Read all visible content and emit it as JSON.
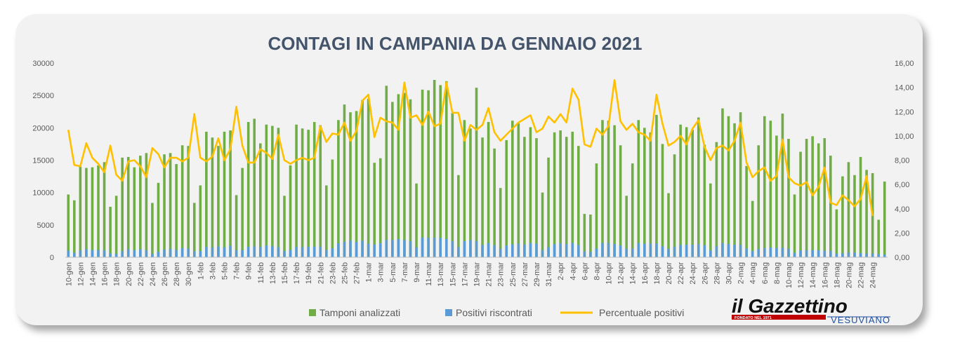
{
  "chart_data": {
    "type": "bar+line",
    "title": "CONTAGI IN CAMPANIA DA GENNAIO 2021",
    "left_axis": {
      "min": 0,
      "max": 30000,
      "step": 5000,
      "tick_labels": [
        "0",
        "5000",
        "10000",
        "15000",
        "20000",
        "25000",
        "30000"
      ]
    },
    "right_axis": {
      "min": 0,
      "max": 16,
      "step": 2,
      "tick_labels": [
        "0,00",
        "2,00",
        "4,00",
        "6,00",
        "8,00",
        "10,00",
        "12,00",
        "14,00",
        "16,00"
      ]
    },
    "x_labels": [
      "10-gen",
      "12-gen",
      "14-gen",
      "16-gen",
      "18-gen",
      "20-gen",
      "22-gen",
      "24-gen",
      "26-gen",
      "28-gen",
      "30-gen",
      "1-feb",
      "3-feb",
      "5-feb",
      "7-feb",
      "9-feb",
      "11-feb",
      "13-feb",
      "15-feb",
      "17-feb",
      "19-feb",
      "21-feb",
      "23-feb",
      "25-feb",
      "27-feb",
      "1-mar",
      "3-mar",
      "5-mar",
      "7-mar",
      "9-mar",
      "11-mar",
      "13-mar",
      "15-mar",
      "17-mar",
      "19-mar",
      "21-mar",
      "23-mar",
      "25-mar",
      "27-mar",
      "29-mar",
      "31-mar",
      "2-apr",
      "4-apr",
      "6-apr",
      "8-apr",
      "10-apr",
      "12-apr",
      "14-apr",
      "16-apr",
      "18-apr",
      "20-apr",
      "22-apr",
      "24-apr",
      "26-apr",
      "28-apr",
      "30-apr",
      "2-mag",
      "4-mag",
      "6-mag",
      "8-mag",
      "10-mag",
      "12-mag",
      "14-mag",
      "16-mag",
      "18-mag",
      "20-mag",
      "22-mag",
      "24-mag"
    ],
    "series": [
      {
        "name": "Tamponi analizzati",
        "axis": "left",
        "kind": "bar",
        "values": [
          9700,
          8800,
          14000,
          13800,
          13900,
          14200,
          14700,
          7800,
          9500,
          15400,
          15500,
          13900,
          15700,
          16100,
          8400,
          11500,
          15900,
          16100,
          14400,
          17300,
          17200,
          8400,
          11100,
          19400,
          18500,
          17200,
          19400,
          19600,
          9600,
          13800,
          20900,
          21400,
          17600,
          20500,
          20300,
          20000,
          9500,
          14200,
          20500,
          19900,
          19700,
          20900,
          20400,
          11100,
          15100,
          21200,
          23600,
          22400,
          22600,
          24300,
          24500,
          14600,
          15300,
          26500,
          24000,
          25200,
          25400,
          24400,
          11400,
          25900,
          25800,
          27400,
          26600,
          27200,
          22300,
          12700,
          21200,
          19900,
          26200,
          18500,
          20900,
          16800,
          10700,
          18100,
          21100,
          20700,
          18600,
          20100,
          18400,
          10000,
          15400,
          19300,
          19600,
          18600,
          19400,
          17200,
          6700,
          6600,
          14500,
          21200,
          21100,
          20400,
          17300,
          9500,
          14500,
          21200,
          20000,
          19300,
          22000,
          17500,
          9900,
          15900,
          20500,
          20100,
          19700,
          21600,
          17400,
          11400,
          17800,
          23000,
          21800,
          20700,
          22400,
          14100,
          8700,
          17300,
          21800,
          21100,
          18800,
          22200,
          18300,
          9700,
          16300,
          18300,
          18700,
          17600,
          18400,
          15700,
          7400,
          12500,
          14700,
          12700,
          15500,
          13500,
          13000,
          5800,
          11700
        ]
      },
      {
        "name": "Positivi riscontrati",
        "axis": "left",
        "kind": "bar",
        "values": [
          1020,
          700,
          1050,
          1270,
          1130,
          1130,
          1080,
          620,
          520,
          950,
          1240,
          1090,
          1240,
          1090,
          550,
          840,
          1180,
          1320,
          1130,
          1410,
          1350,
          920,
          950,
          1590,
          1530,
          1700,
          1530,
          1790,
          1100,
          1110,
          1610,
          1690,
          1600,
          1840,
          1720,
          1550,
          950,
          1130,
          1600,
          1560,
          1640,
          1650,
          1660,
          1140,
          1370,
          2160,
          2400,
          2590,
          2370,
          2580,
          2120,
          1990,
          2210,
          2680,
          2690,
          2800,
          2670,
          2480,
          1540,
          3040,
          3010,
          3020,
          3010,
          2850,
          2500,
          1570,
          2500,
          2640,
          2500,
          1900,
          2180,
          1850,
          1320,
          1830,
          2000,
          2100,
          1950,
          2200,
          2100,
          1120,
          1560,
          2040,
          2170,
          2050,
          2220,
          1900,
          890,
          830,
          1350,
          2200,
          2210,
          2060,
          1840,
          1370,
          1330,
          2200,
          2110,
          2120,
          2150,
          1710,
          1300,
          1610,
          1930,
          1930,
          1940,
          2040,
          1880,
          1080,
          1720,
          2180,
          2050,
          1940,
          1940,
          1380,
          970,
          1270,
          1430,
          1520,
          1440,
          1470,
          1300,
          690,
          1060,
          1110,
          1130,
          1080,
          1020,
          980,
          560,
          620,
          740,
          720,
          640,
          580,
          580,
          490,
          410
        ]
      },
      {
        "name": "Percentuale positivi",
        "axis": "right",
        "kind": "line",
        "values": [
          10.5,
          7.6,
          7.5,
          9.4,
          8.2,
          7.7,
          7.0,
          9.2,
          6.8,
          6.3,
          7.9,
          8.0,
          7.5,
          6.6,
          9.0,
          8.5,
          7.4,
          8.2,
          8.2,
          7.9,
          8.2,
          11.8,
          8.2,
          7.9,
          8.3,
          9.8,
          8.0,
          8.9,
          12.4,
          9.2,
          7.8,
          7.8,
          8.9,
          8.6,
          8.1,
          10.1,
          8.0,
          7.7,
          8.0,
          8.2,
          8.0,
          8.2,
          10.8,
          9.5,
          10.2,
          10.1,
          11.1,
          9.6,
          10.4,
          12.9,
          13.4,
          9.9,
          11.5,
          11.2,
          11.1,
          10.5,
          14.4,
          11.5,
          11.7,
          10.9,
          12.0,
          10.8,
          11.0,
          14.4,
          11.9,
          11.9,
          9.6,
          10.9,
          10.5,
          10.9,
          12.3,
          10.3,
          9.6,
          10.1,
          10.6,
          11.1,
          11.4,
          11.7,
          10.3,
          10.6,
          11.6,
          11.1,
          11.8,
          11.1,
          13.9,
          13.0,
          9.3,
          9.1,
          10.6,
          10.1,
          10.8,
          14.6,
          11.2,
          10.5,
          11.0,
          10.3,
          10.1,
          9.6,
          13.4,
          11.0,
          9.2,
          9.5,
          10.0,
          9.3,
          10.6,
          11.3,
          9.1,
          8.0,
          9.0,
          9.2,
          8.8,
          9.6,
          11.1,
          7.8,
          6.6,
          7.1,
          7.4,
          6.3,
          6.7,
          9.7,
          6.6,
          6.1,
          5.9,
          6.2,
          5.1,
          5.8,
          7.4,
          4.5,
          4.3,
          5.1,
          4.7,
          4.2,
          4.8,
          6.7,
          3.4
        ]
      }
    ],
    "legend": "bottom",
    "grid": false,
    "colors": {
      "tamponi": "#70ad47",
      "positivi": "#5b9bd5",
      "percentuale": "#ffc000"
    }
  },
  "logo": {
    "name": "il Gazzettino",
    "sub": "VESUVIANO",
    "tagline": "FONDATO NEL 1971"
  }
}
